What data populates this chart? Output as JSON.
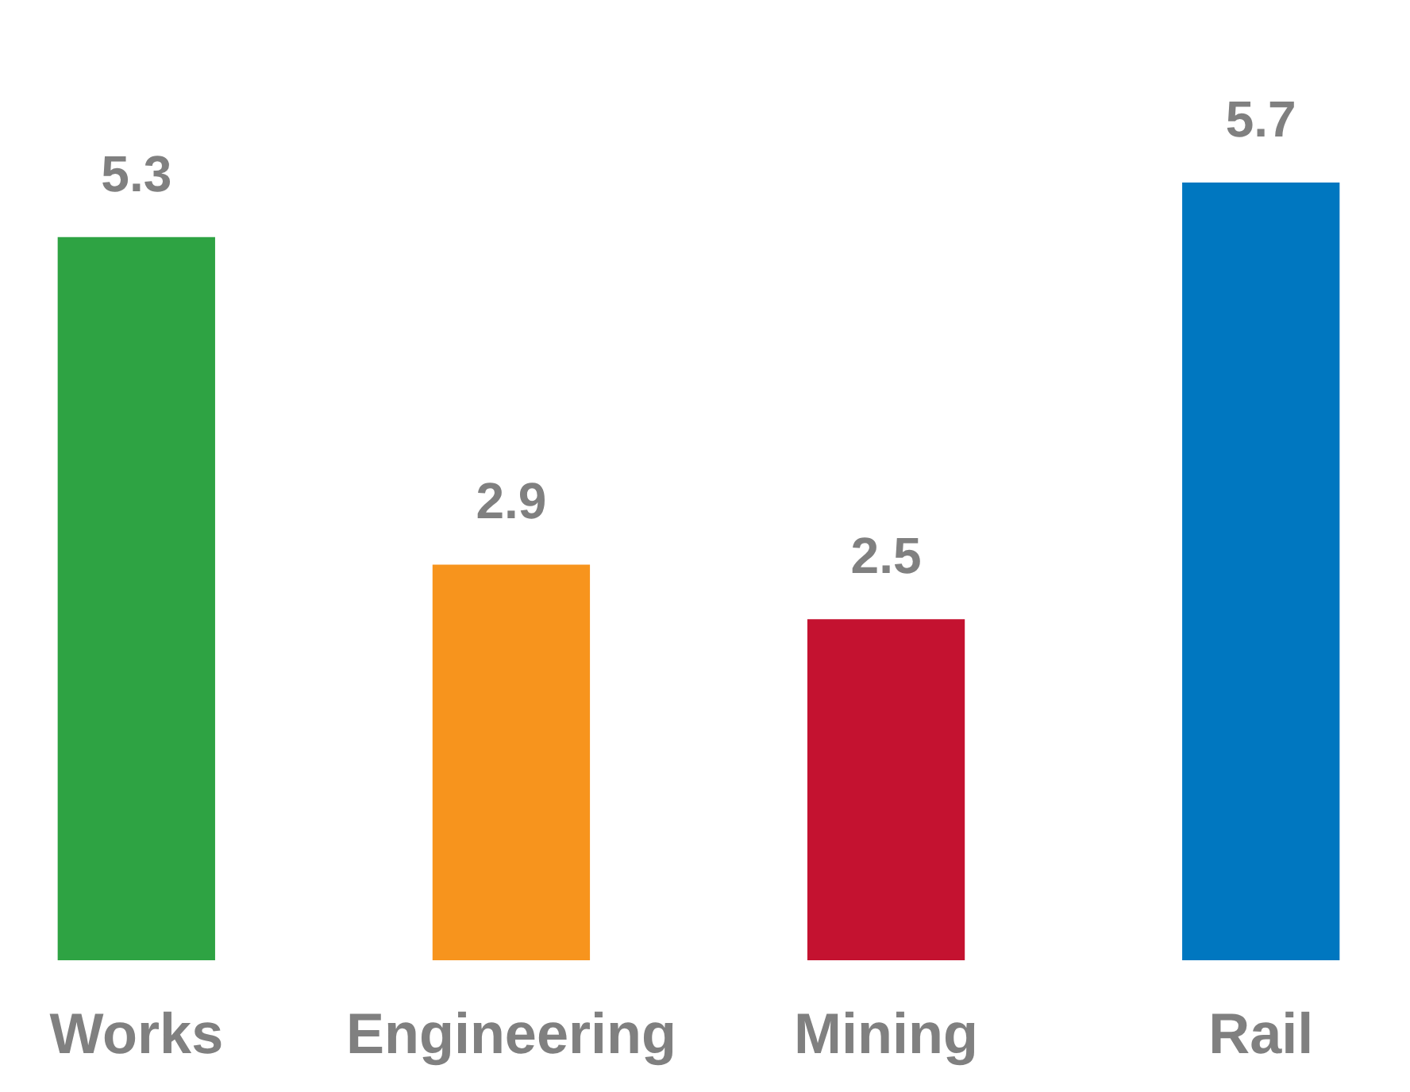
{
  "chart_data": {
    "type": "bar",
    "categories": [
      "Works",
      "Engineering",
      "Mining",
      "Rail"
    ],
    "values": [
      5.3,
      2.9,
      2.5,
      5.7
    ],
    "colors": [
      "#2ea343",
      "#f7941d",
      "#c41230",
      "#0077c0"
    ],
    "data_labels": true,
    "tick_labels": "x"
  }
}
